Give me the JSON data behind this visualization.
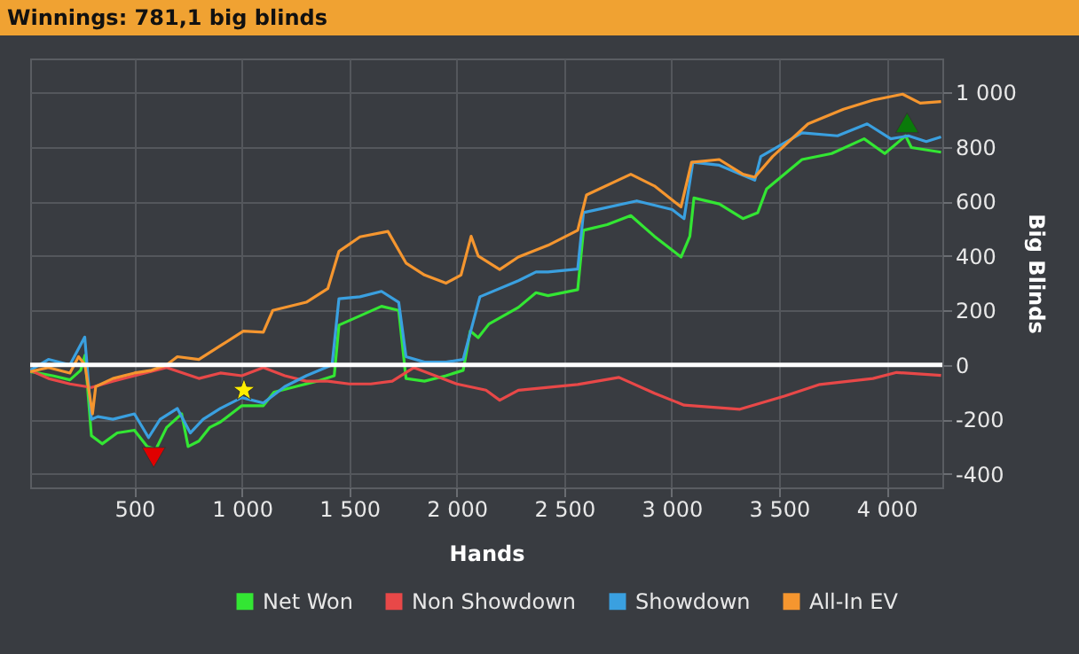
{
  "chart_data": {
    "type": "line",
    "title": "Winnings: 781,1 big blinds",
    "xlabel": "Hands",
    "ylabel": "Big Blinds",
    "xlim": [
      15,
      4260
    ],
    "ylim": [
      -450,
      1125
    ],
    "xticks": [
      500,
      {
        "value": 1000,
        "label": "1 000"
      },
      {
        "value": 1500,
        "label": "1 500"
      },
      {
        "value": 2000,
        "label": "2 000"
      },
      {
        "value": 2500,
        "label": "2 500"
      },
      {
        "value": 3000,
        "label": "3 000"
      },
      {
        "value": 3500,
        "label": "3 500"
      },
      {
        "value": 4000,
        "label": "4 000"
      }
    ],
    "yticks": [
      -400,
      -200,
      0,
      200,
      400,
      600,
      800,
      {
        "value": 1000,
        "label": "1 000"
      }
    ],
    "grid": true,
    "legend": "bottom",
    "marker": "none",
    "ref_lines": [
      {
        "axis": "y",
        "value": 0,
        "color": "#ffffff"
      }
    ],
    "series": [
      {
        "name": "Net Won",
        "color": "#33e633",
        "x": [
          15,
          120,
          200,
          250,
          270,
          300,
          350,
          420,
          500,
          560,
          600,
          650,
          720,
          750,
          800,
          850,
          900,
          1000,
          1100,
          1150,
          1250,
          1350,
          1430,
          1452,
          1550,
          1650,
          1730,
          1764,
          1850,
          1950,
          2030,
          2063,
          2100,
          2150,
          2287,
          2369,
          2425,
          2563,
          2590,
          2700,
          2810,
          2920,
          3044,
          3085,
          3104,
          3222,
          3332,
          3401,
          3442,
          3607,
          3745,
          3896,
          3992,
          4089,
          4116,
          4254
        ],
        "values": [
          -25,
          -40,
          -55,
          -20,
          35,
          -260,
          -290,
          -250,
          -240,
          -300,
          -310,
          -230,
          -180,
          -300,
          -280,
          -230,
          -210,
          -150,
          -150,
          -100,
          -80,
          -60,
          -40,
          146,
          180,
          215,
          200,
          -50,
          -60,
          -40,
          -20,
          124,
          100,
          150,
          211,
          265,
          254,
          276,
          494,
          515,
          548,
          472,
          396,
          472,
          613,
          591,
          537,
          559,
          646,
          754,
          776,
          830,
          776,
          841,
          798,
          781
        ]
      },
      {
        "name": "Non Showdown",
        "color": "#e84848",
        "x": [
          15,
          100,
          200,
          300,
          400,
          500,
          650,
          800,
          900,
          1000,
          1100,
          1200,
          1300,
          1400,
          1500,
          1600,
          1700,
          1800,
          1900,
          2000,
          2136,
          2200,
          2287,
          2563,
          2755,
          2920,
          3058,
          3318,
          3525,
          3690,
          3937,
          4047,
          4254
        ],
        "values": [
          -20,
          -50,
          -70,
          -83,
          -60,
          -40,
          -10,
          -50,
          -30,
          -40,
          -10,
          -40,
          -60,
          -60,
          -70,
          -70,
          -60,
          -10,
          -40,
          -70,
          -93,
          -130,
          -93,
          -72,
          -46,
          -104,
          -148,
          -163,
          -115,
          -72,
          -50,
          -28,
          -39
        ]
      },
      {
        "name": "Showdown",
        "color": "#3aa0e0",
        "x": [
          15,
          100,
          200,
          269,
          300,
          330,
          400,
          500,
          566,
          620,
          700,
          760,
          820,
          900,
          1000,
          1100,
          1200,
          1300,
          1420,
          1452,
          1550,
          1650,
          1730,
          1764,
          1850,
          1950,
          2030,
          2108,
          2287,
          2369,
          2425,
          2563,
          2590,
          2838,
          3003,
          3058,
          3099,
          3222,
          3387,
          3415,
          3607,
          3772,
          3910,
          4020,
          4102,
          4185,
          4254
        ],
        "values": [
          -20,
          20,
          0,
          102,
          -200,
          -190,
          -200,
          -180,
          -267,
          -200,
          -160,
          -250,
          -200,
          -160,
          -120,
          -140,
          -80,
          -40,
          0,
          243,
          250,
          270,
          230,
          30,
          10,
          10,
          20,
          250,
          309,
          341,
          341,
          352,
          559,
          602,
          570,
          537,
          744,
          733,
          678,
          765,
          852,
          841,
          885,
          830,
          841,
          820,
          837
        ]
      },
      {
        "name": "All-In EV",
        "color": "#f5962f",
        "x": [
          15,
          100,
          200,
          240,
          270,
          305,
          320,
          400,
          500,
          580,
          650,
          700,
          800,
          900,
          1007,
          1100,
          1144,
          1300,
          1400,
          1452,
          1550,
          1680,
          1764,
          1850,
          1950,
          2020,
          2067,
          2100,
          2200,
          2287,
          2425,
          2563,
          2604,
          2810,
          2920,
          3044,
          3093,
          3222,
          3332,
          3387,
          3470,
          3635,
          3800,
          3937,
          4075,
          4157,
          4254
        ],
        "values": [
          -25,
          -10,
          -30,
          30,
          0,
          -180,
          -80,
          -50,
          -30,
          -20,
          0,
          30,
          20,
          70,
          124,
          120,
          200,
          230,
          280,
          417,
          470,
          490,
          374,
          330,
          300,
          330,
          472,
          400,
          350,
          396,
          439,
          494,
          624,
          700,
          657,
          580,
          744,
          754,
          700,
          689,
          765,
          885,
          939,
          972,
          994,
          961,
          967
        ]
      },
      {
        "type": "scatter",
        "color": "#e00000",
        "marker": "triangle-down",
        "x": [
          590
        ],
        "values": [
          -340
        ]
      },
      {
        "type": "scatter",
        "color": "#ffee00",
        "marker": "star",
        "x": [
          1010
        ],
        "values": [
          -93
        ]
      },
      {
        "type": "scatter",
        "color": "#0a7a0a",
        "marker": "triangle",
        "x": [
          4096
        ],
        "values": [
          889
        ]
      }
    ]
  }
}
